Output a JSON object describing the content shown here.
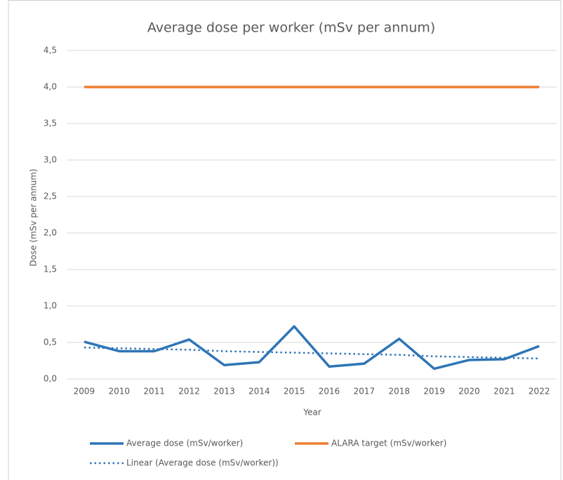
{
  "chart_data": {
    "type": "line",
    "title": "Average dose per worker (mSv per annum)",
    "x_label": "Year",
    "y_label": "Dose (mSv per annum)",
    "categories": [
      "2009",
      "2010",
      "2011",
      "2012",
      "2013",
      "2014",
      "2015",
      "2016",
      "2017",
      "2018",
      "2019",
      "2020",
      "2021",
      "2022"
    ],
    "series": [
      {
        "name": "Average dose (mSv/worker)",
        "color": "#2e75b6",
        "style": "solid",
        "values": [
          0.51,
          0.38,
          0.38,
          0.54,
          0.19,
          0.23,
          0.72,
          0.17,
          0.21,
          0.55,
          0.14,
          0.26,
          0.27,
          0.45
        ]
      },
      {
        "name": "ALARA target (mSv/worker)",
        "color": "#ed7d31",
        "style": "solid",
        "values": [
          4.0,
          4.0,
          4.0,
          4.0,
          4.0,
          4.0,
          4.0,
          4.0,
          4.0,
          4.0,
          4.0,
          4.0,
          4.0,
          4.0
        ]
      },
      {
        "name": "Linear (Average dose (mSv/worker))",
        "color": "#2e75b6",
        "style": "dotted",
        "values": [
          0.43,
          0.42,
          0.41,
          0.4,
          0.38,
          0.37,
          0.36,
          0.35,
          0.34,
          0.33,
          0.31,
          0.3,
          0.29,
          0.28
        ]
      }
    ],
    "ylim": [
      0,
      4.5
    ],
    "yticks": [
      {
        "value": 0,
        "label": "0,0"
      },
      {
        "value": 0.5,
        "label": "0,5"
      },
      {
        "value": 1,
        "label": "1,0"
      },
      {
        "value": 1.5,
        "label": "1,5"
      },
      {
        "value": 2,
        "label": "2,0"
      },
      {
        "value": 2.5,
        "label": "2,5"
      },
      {
        "value": 3,
        "label": "3,0"
      },
      {
        "value": 3.5,
        "label": "3,5"
      },
      {
        "value": 4,
        "label": "4,0"
      },
      {
        "value": 4.5,
        "label": "4,5"
      }
    ],
    "grid": true,
    "legend": "bottom"
  }
}
